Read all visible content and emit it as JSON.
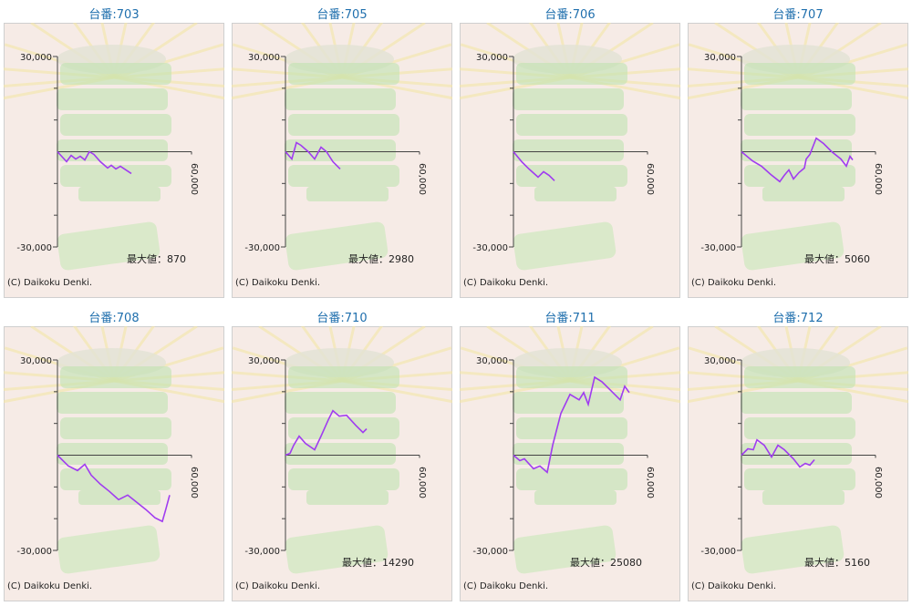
{
  "chart_data": [
    {
      "type": "line",
      "title": "台番:703",
      "color": "#a03cf0",
      "x": [
        0,
        4080,
        6120,
        8160,
        10200,
        12240,
        14290,
        16330,
        19180,
        22450,
        24080,
        26120,
        28160,
        30610,
        33060
      ],
      "values": [
        0,
        -3140,
        -1140,
        -2290,
        -1430,
        -2570,
        0,
        -860,
        -3140,
        -5140,
        -4290,
        -5430,
        -4570,
        -5710,
        -6860
      ],
      "xlim": [
        0,
        60000
      ],
      "ylim": [
        -30000,
        30000
      ],
      "xticks": [
        {
          "value": 60000,
          "label": "60,000"
        }
      ],
      "yticks": [
        {
          "value": 30000,
          "label": "30,000"
        },
        {
          "value": -30000,
          "label": "-30,000"
        }
      ],
      "minor_yticks": [
        20000,
        10000,
        -10000,
        -20000
      ],
      "annotation": "最大値：870",
      "credit": "(C) Daikoku Denki."
    },
    {
      "type": "line",
      "title": "台番:705",
      "color": "#a03cf0",
      "x": [
        0,
        2860,
        4900,
        6940,
        10200,
        13060,
        15920,
        18370,
        21220,
        24490
      ],
      "values": [
        0,
        -2290,
        2860,
        2000,
        0,
        -2290,
        1430,
        0,
        -3140,
        -5430
      ],
      "xlim": [
        0,
        60000
      ],
      "ylim": [
        -30000,
        30000
      ],
      "xticks": [
        {
          "value": 60000,
          "label": "60,000"
        }
      ],
      "yticks": [
        {
          "value": 30000,
          "label": "30,000"
        },
        {
          "value": -30000,
          "label": "-30,000"
        }
      ],
      "minor_yticks": [
        20000,
        10000,
        -10000,
        -20000
      ],
      "annotation": "最大値：2980",
      "credit": "(C) Daikoku Denki."
    },
    {
      "type": "line",
      "title": "台番:706",
      "color": "#a03cf0",
      "x": [
        0,
        3670,
        6940,
        11020,
        13470,
        15920,
        18370
      ],
      "values": [
        0,
        -3140,
        -5430,
        -8000,
        -6290,
        -7430,
        -9140
      ],
      "xlim": [
        0,
        60000
      ],
      "ylim": [
        -30000,
        30000
      ],
      "xticks": [
        {
          "value": 60000,
          "label": "60,000"
        }
      ],
      "yticks": [
        {
          "value": 30000,
          "label": "30,000"
        },
        {
          "value": -30000,
          "label": "-30,000"
        }
      ],
      "minor_yticks": [
        20000,
        10000,
        -10000,
        -20000
      ],
      "credit": "(C) Daikoku Denki."
    },
    {
      "type": "line",
      "title": "台番:707",
      "color": "#a03cf0",
      "x": [
        0,
        4900,
        8980,
        13060,
        17140,
        19180,
        21220,
        23270,
        25710,
        28160,
        28980,
        30610,
        33470,
        36730,
        40410,
        44490,
        46940,
        48570,
        49800
      ],
      "values": [
        0,
        -2860,
        -4570,
        -7140,
        -9430,
        -7430,
        -5710,
        -8570,
        -6570,
        -5140,
        -2290,
        -860,
        4290,
        2570,
        0,
        -2290,
        -4570,
        -1430,
        -2570
      ],
      "xlim": [
        0,
        60000
      ],
      "ylim": [
        -30000,
        30000
      ],
      "xticks": [
        {
          "value": 60000,
          "label": "60,000"
        }
      ],
      "yticks": [
        {
          "value": 30000,
          "label": "30,000"
        },
        {
          "value": -30000,
          "label": "-30,000"
        }
      ],
      "minor_yticks": [
        20000,
        10000,
        -10000,
        -20000
      ],
      "annotation": "最大値：5060",
      "credit": "(C) Daikoku Denki."
    },
    {
      "type": "line",
      "title": "台番:708",
      "color": "#a03cf0",
      "x": [
        0,
        4900,
        8980,
        12240,
        15100,
        19180,
        23270,
        27350,
        31430,
        35510,
        39590,
        43670,
        46940,
        48570,
        50200
      ],
      "values": [
        0,
        -3430,
        -4860,
        -2860,
        -6290,
        -9140,
        -11430,
        -14000,
        -12570,
        -14860,
        -17140,
        -19710,
        -20860,
        -16860,
        -12570
      ],
      "xlim": [
        0,
        60000
      ],
      "ylim": [
        -30000,
        30000
      ],
      "xticks": [
        {
          "value": 60000,
          "label": "60,000"
        }
      ],
      "yticks": [
        {
          "value": 30000,
          "label": "30,000"
        },
        {
          "value": -30000,
          "label": "-30,000"
        }
      ],
      "minor_yticks": [
        20000,
        10000,
        -10000,
        -20000
      ],
      "credit": "(C) Daikoku Denki."
    },
    {
      "type": "line",
      "title": "台番:710",
      "color": "#a03cf0",
      "x": [
        0,
        2040,
        3670,
        6120,
        8980,
        13060,
        15920,
        19180,
        21220,
        24080,
        27350,
        31430,
        34690,
        36330
      ],
      "values": [
        0,
        570,
        3140,
        6000,
        3710,
        1710,
        6000,
        11140,
        14000,
        12290,
        12570,
        9430,
        7140,
        8290
      ],
      "xlim": [
        0,
        60000
      ],
      "ylim": [
        -30000,
        30000
      ],
      "xticks": [
        {
          "value": 60000,
          "label": "60,000"
        }
      ],
      "yticks": [
        {
          "value": 30000,
          "label": "30,000"
        },
        {
          "value": -30000,
          "label": "-30,000"
        }
      ],
      "minor_yticks": [
        20000,
        10000,
        -10000,
        -20000
      ],
      "annotation": "最大値：14290",
      "credit": "(C) Daikoku Denki."
    },
    {
      "type": "line",
      "title": "台番:711",
      "color": "#a03cf0",
      "x": [
        0,
        2860,
        4900,
        8980,
        11840,
        15100,
        17550,
        21220,
        25310,
        29390,
        31430,
        33470,
        36330,
        39590,
        43670,
        47760,
        49800,
        51840
      ],
      "values": [
        0,
        -1710,
        -1140,
        -4290,
        -3430,
        -5430,
        3140,
        13140,
        19140,
        17430,
        19710,
        16000,
        24570,
        23140,
        20290,
        17430,
        21710,
        19710
      ],
      "xlim": [
        0,
        60000
      ],
      "ylim": [
        -30000,
        30000
      ],
      "xticks": [
        {
          "value": 60000,
          "label": "60,000"
        }
      ],
      "yticks": [
        {
          "value": 30000,
          "label": "30,000"
        },
        {
          "value": -30000,
          "label": "-30,000"
        }
      ],
      "minor_yticks": [
        20000,
        10000,
        -10000,
        -20000
      ],
      "annotation": "最大値：25080",
      "credit": "(C) Daikoku Denki."
    },
    {
      "type": "line",
      "title": "台番:712",
      "color": "#a03cf0",
      "x": [
        0,
        2860,
        5310,
        6940,
        10200,
        13470,
        16330,
        19180,
        23270,
        26120,
        28570,
        30610,
        32650
      ],
      "values": [
        0,
        2000,
        1710,
        4860,
        3140,
        -570,
        3140,
        1710,
        -1140,
        -3710,
        -2570,
        -3140,
        -1430
      ],
      "xlim": [
        0,
        60000
      ],
      "ylim": [
        -30000,
        30000
      ],
      "xticks": [
        {
          "value": 60000,
          "label": "60,000"
        }
      ],
      "yticks": [
        {
          "value": 30000,
          "label": "30,000"
        },
        {
          "value": -30000,
          "label": "-30,000"
        }
      ],
      "minor_yticks": [
        20000,
        10000,
        -10000,
        -20000
      ],
      "annotation": "最大値：5160",
      "credit": "(C) Daikoku Denki."
    }
  ]
}
